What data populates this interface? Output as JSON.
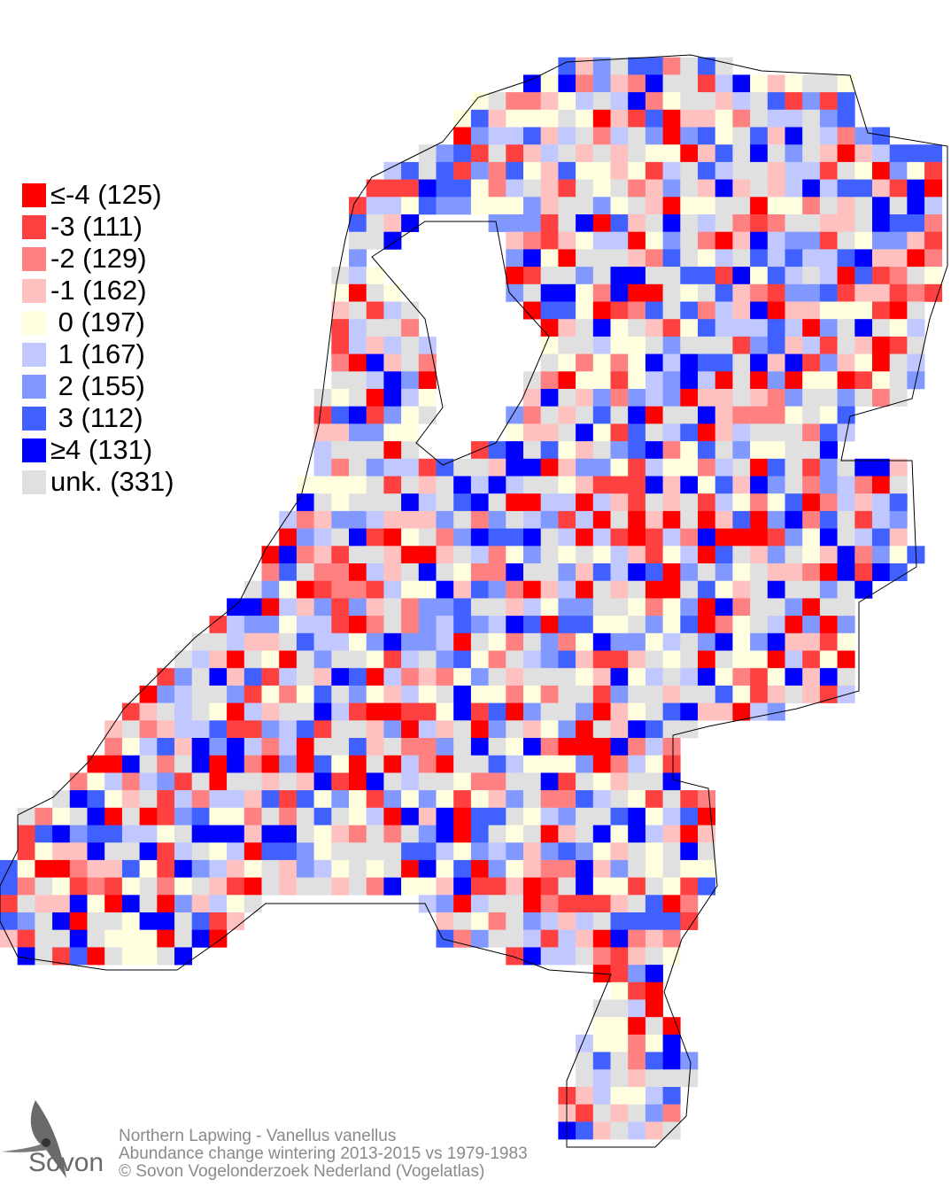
{
  "legend": {
    "items": [
      {
        "label": "≤-4 (125)",
        "value": "≤-4",
        "count": 125,
        "color": "#ff0000"
      },
      {
        "label": "-3 (111)",
        "value": "-3",
        "count": 111,
        "color": "#ff4040"
      },
      {
        "label": "-2 (129)",
        "value": "-2",
        "count": 129,
        "color": "#ff8080"
      },
      {
        "label": "-1 (162)",
        "value": "-1",
        "count": 162,
        "color": "#ffc0c0"
      },
      {
        "label": " 0 (197)",
        "value": "0",
        "count": 197,
        "color": "#ffffe0"
      },
      {
        "label": " 1 (167)",
        "value": "1",
        "count": 167,
        "color": "#c0c8ff"
      },
      {
        "label": " 2 (155)",
        "value": "2",
        "count": 155,
        "color": "#8098ff"
      },
      {
        "label": " 3 (112)",
        "value": "3",
        "count": 112,
        "color": "#4060ff"
      },
      {
        "label": "≥4 (131)",
        "value": "≥4",
        "count": 131,
        "color": "#0000ff"
      },
      {
        "label": "unk. (331)",
        "value": "unk.",
        "count": 331,
        "color": "#e0e0e0"
      }
    ]
  },
  "footer": {
    "species": "Northern Lapwing - Vanellus vanellus",
    "subtitle": "Abundance change wintering  2013-2015 vs 1979-1983",
    "copyright": "© Sovon Vogelonderzoek Nederland (Vogelatlas)"
  },
  "logo": {
    "text": "Sovon",
    "icon": "swallow-icon"
  }
}
